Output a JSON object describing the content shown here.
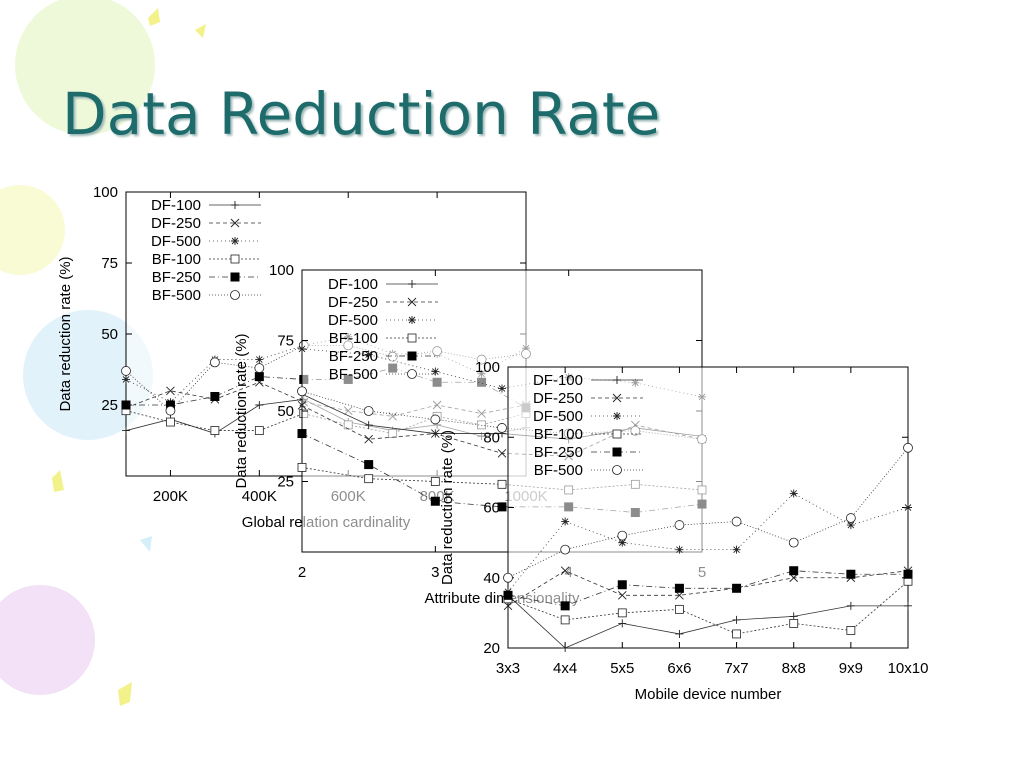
{
  "slide": {
    "title": "Data Reduction Rate"
  },
  "chart_data": [
    {
      "type": "line",
      "xlabel": "Global relation cardinality",
      "ylabel": "Data reduction rate (%)",
      "x": [
        100,
        200,
        300,
        400,
        500,
        600,
        700,
        800,
        900,
        1000
      ],
      "xlim": [
        100,
        1000
      ],
      "xticks": [
        200,
        400,
        600,
        800,
        1000
      ],
      "xtick_labels": [
        "200K",
        "400K",
        "600K",
        "800K",
        "1000K"
      ],
      "ylim": [
        0,
        100
      ],
      "yticks": [
        25,
        50,
        75,
        100
      ],
      "ytick_labels": [
        "25",
        "50",
        "75",
        "100"
      ],
      "legend_position": "top-left",
      "grid": false,
      "series": [
        {
          "name": "DF-100",
          "values": [
            16,
            20,
            15,
            25,
            27,
            19,
            16,
            18,
            14,
            17
          ]
        },
        {
          "name": "DF-250",
          "values": [
            24,
            30,
            27,
            33,
            26,
            23,
            21,
            25,
            22,
            25
          ]
        },
        {
          "name": "DF-500",
          "values": [
            34,
            26,
            41,
            41,
            46,
            49,
            43,
            43,
            36,
            45
          ]
        },
        {
          "name": "BF-100",
          "values": [
            23,
            19,
            16,
            16,
            22,
            18,
            15,
            21,
            18,
            22
          ]
        },
        {
          "name": "BF-250",
          "values": [
            25,
            25,
            28,
            35,
            34,
            34,
            38,
            33,
            33,
            24
          ]
        },
        {
          "name": "BF-500",
          "values": [
            37,
            23,
            40,
            38,
            46,
            46,
            42,
            44,
            41,
            43
          ]
        }
      ]
    },
    {
      "type": "line",
      "xlabel": "Attribute dimensionality",
      "ylabel": "Data reduction rate (%)",
      "x": [
        2,
        2.5,
        3,
        3.5,
        4,
        4.5,
        5
      ],
      "xlim": [
        2,
        5
      ],
      "xticks": [
        2,
        3,
        4,
        5
      ],
      "xtick_labels": [
        "2",
        "3",
        "4",
        "5"
      ],
      "ylim": [
        0,
        100
      ],
      "yticks": [
        25,
        50,
        75,
        100
      ],
      "ytick_labels": [
        "25",
        "50",
        "75",
        "100"
      ],
      "legend_position": "top-left",
      "grid": false,
      "series": [
        {
          "name": "DF-100",
          "values": [
            56,
            45,
            42,
            42,
            40,
            44,
            41
          ]
        },
        {
          "name": "DF-250",
          "values": [
            52,
            40,
            42,
            35,
            34,
            45,
            40
          ]
        },
        {
          "name": "DF-500",
          "values": [
            72,
            70,
            64,
            58,
            62,
            60,
            55
          ]
        },
        {
          "name": "BF-100",
          "values": [
            30,
            26,
            25,
            24,
            22,
            24,
            22
          ]
        },
        {
          "name": "BF-250",
          "values": [
            42,
            31,
            18,
            16,
            16,
            14,
            17
          ]
        },
        {
          "name": "BF-500",
          "values": [
            57,
            50,
            47,
            44,
            42,
            43,
            40
          ]
        }
      ]
    },
    {
      "type": "line",
      "xlabel": "Mobile device number",
      "ylabel": "Data reduction rate (%)",
      "categories": [
        "3x3",
        "4x4",
        "5x5",
        "6x6",
        "7x7",
        "8x8",
        "9x9",
        "10x10"
      ],
      "ylim": [
        20,
        100
      ],
      "yticks": [
        20,
        40,
        60,
        80,
        100
      ],
      "ytick_labels": [
        "20",
        "40",
        "60",
        "80",
        "100"
      ],
      "legend_position": "top-left",
      "grid": false,
      "series": [
        {
          "name": "DF-100",
          "values": [
            35,
            20,
            27,
            24,
            28,
            29,
            32,
            32
          ]
        },
        {
          "name": "DF-250",
          "values": [
            32,
            42,
            35,
            35,
            37,
            40,
            40,
            42
          ]
        },
        {
          "name": "DF-500",
          "values": [
            36,
            56,
            50,
            48,
            48,
            64,
            55,
            60
          ]
        },
        {
          "name": "BF-100",
          "values": [
            34,
            28,
            30,
            31,
            24,
            27,
            25,
            39
          ]
        },
        {
          "name": "BF-250",
          "values": [
            35,
            32,
            38,
            37,
            37,
            42,
            41,
            41
          ]
        },
        {
          "name": "BF-500",
          "values": [
            40,
            48,
            52,
            55,
            56,
            50,
            57,
            77
          ]
        }
      ]
    }
  ]
}
